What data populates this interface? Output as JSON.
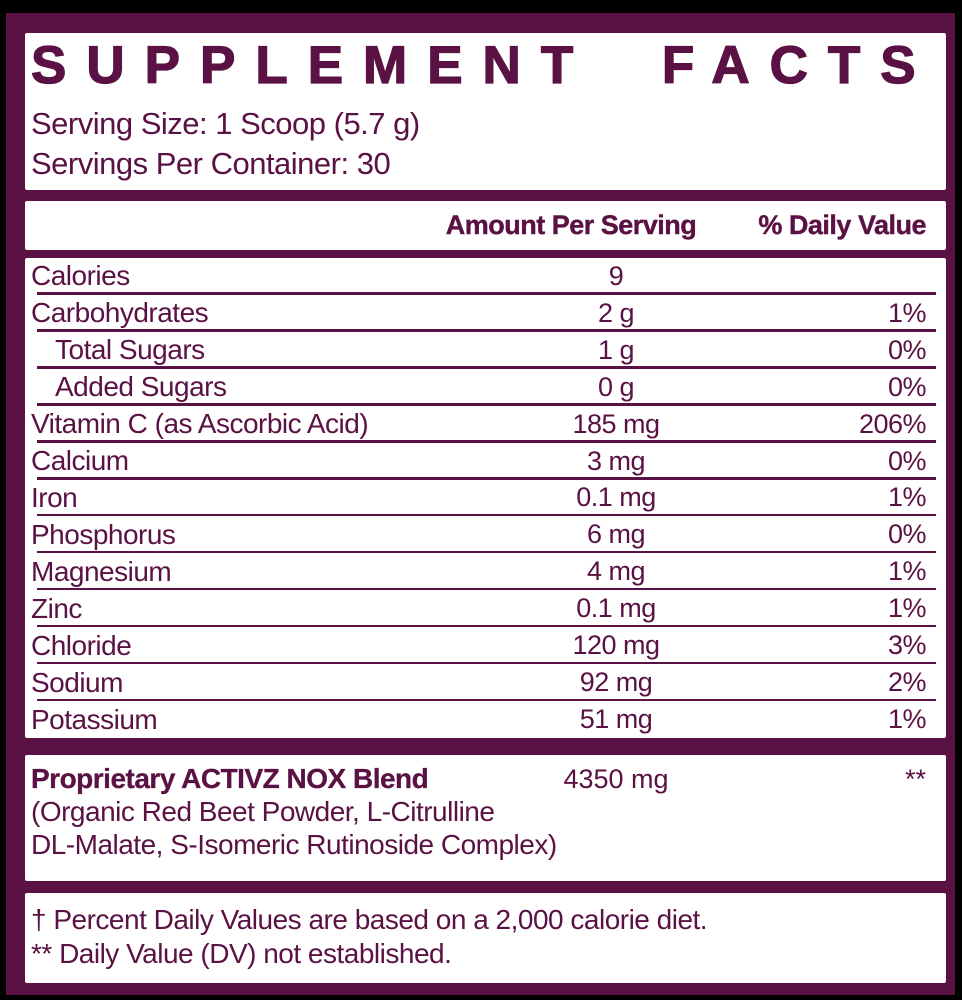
{
  "colors": {
    "brand": "#5a1143",
    "panel_bg": "#ffffff",
    "canvas_bg": "#000000"
  },
  "header": {
    "title": "SUPPLEMENT FACTS",
    "serving_size": "Serving Size: 1 Scoop (5.7 g)",
    "servings_per_container": "Servings Per Container: 30"
  },
  "table": {
    "columns": {
      "amount": "Amount Per Serving",
      "dv": "% Daily Value"
    },
    "rows": [
      {
        "name": "Calories",
        "amount": "9",
        "dv": "",
        "indent": false
      },
      {
        "name": "Carbohydrates",
        "amount": "2 g",
        "dv": "1%",
        "indent": false
      },
      {
        "name": "Total Sugars",
        "amount": "1 g",
        "dv": "0%",
        "indent": true
      },
      {
        "name": "Added Sugars",
        "amount": "0 g",
        "dv": "0%",
        "indent": true
      },
      {
        "name": "Vitamin C (as Ascorbic Acid)",
        "amount": "185 mg",
        "dv": "206%",
        "indent": false
      },
      {
        "name": "Calcium",
        "amount": "3 mg",
        "dv": "0%",
        "indent": false
      },
      {
        "name": "Iron",
        "amount": "0.1 mg",
        "dv": "1%",
        "indent": false
      },
      {
        "name": "Phosphorus",
        "amount": "6 mg",
        "dv": "0%",
        "indent": false
      },
      {
        "name": "Magnesium",
        "amount": "4 mg",
        "dv": "1%",
        "indent": false
      },
      {
        "name": "Zinc",
        "amount": "0.1 mg",
        "dv": "1%",
        "indent": false
      },
      {
        "name": "Chloride",
        "amount": "120 mg",
        "dv": "3%",
        "indent": false
      },
      {
        "name": "Sodium",
        "amount": "92 mg",
        "dv": "2%",
        "indent": false
      },
      {
        "name": "Potassium",
        "amount": "51 mg",
        "dv": "1%",
        "indent": false
      }
    ]
  },
  "blend": {
    "name": "Proprietary ACTIVZ NOX Blend",
    "amount": "4350 mg",
    "dv": "**",
    "ingredients_line1": "(Organic Red Beet Powder, L-Citrulline",
    "ingredients_line2": "DL-Malate, S-Isomeric Rutinoside Complex)"
  },
  "footnotes": {
    "daily_value": "† Percent Daily Values are based on a 2,000 calorie diet.",
    "not_established": "** Daily Value (DV) not established."
  }
}
